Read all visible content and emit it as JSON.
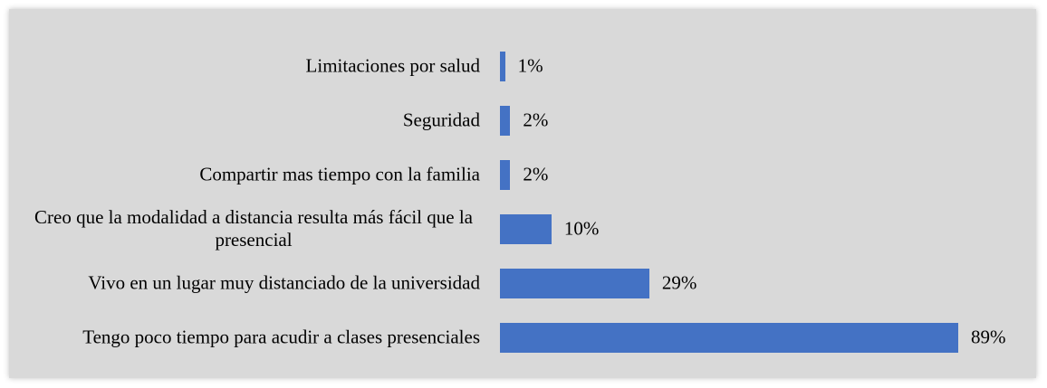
{
  "chart_data": {
    "type": "bar",
    "orientation": "horizontal",
    "categories": [
      "Limitaciones por salud",
      "Seguridad",
      "Compartir mas tiempo con la familia",
      "Creo que la modalidad a distancia resulta más fácil que la presencial",
      "Vivo en un lugar muy distanciado de la universidad",
      "Tengo poco tiempo para acudir a clases presenciales"
    ],
    "values": [
      1,
      2,
      2,
      10,
      29,
      89
    ],
    "value_labels": [
      "1%",
      "2%",
      "2%",
      "10%",
      "29%",
      "89%"
    ],
    "color": "#4472c4"
  }
}
